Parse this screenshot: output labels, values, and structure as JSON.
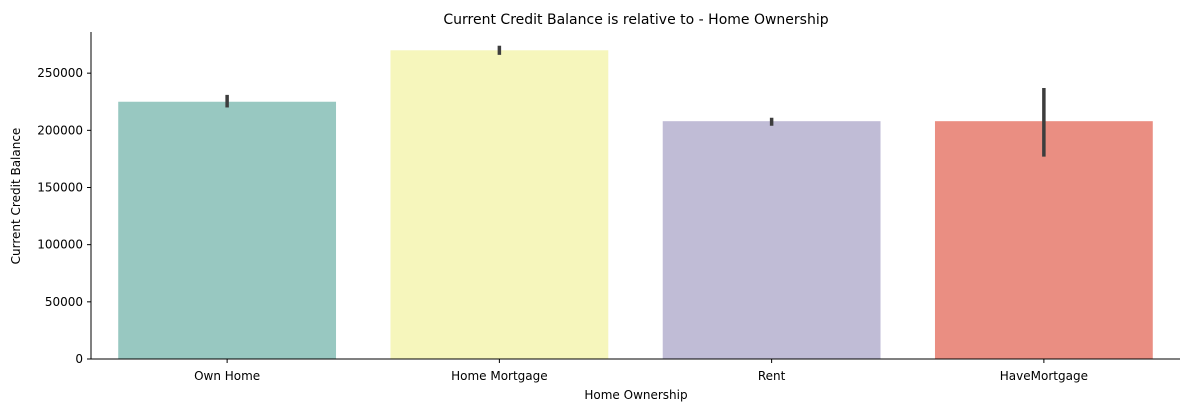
{
  "chart_data": {
    "type": "bar",
    "title": "Current Credit Balance is relative to - Home Ownership",
    "xlabel": "Home Ownership",
    "ylabel": "Current Credit Balance",
    "categories": [
      "Own Home",
      "Home Mortgage",
      "Rent",
      "HaveMortgage"
    ],
    "values": [
      225000,
      270000,
      208000,
      208000
    ],
    "error_low": [
      220000,
      266000,
      204000,
      177000
    ],
    "error_high": [
      231000,
      274000,
      211000,
      237000
    ],
    "colors": [
      "#98c8c1",
      "#f6f6bc",
      "#c0bcd6",
      "#ea8e82"
    ],
    "yticks": [
      0,
      50000,
      100000,
      150000,
      200000,
      250000
    ],
    "ylim": [
      0,
      286000
    ],
    "grid": false,
    "legend": "none"
  }
}
